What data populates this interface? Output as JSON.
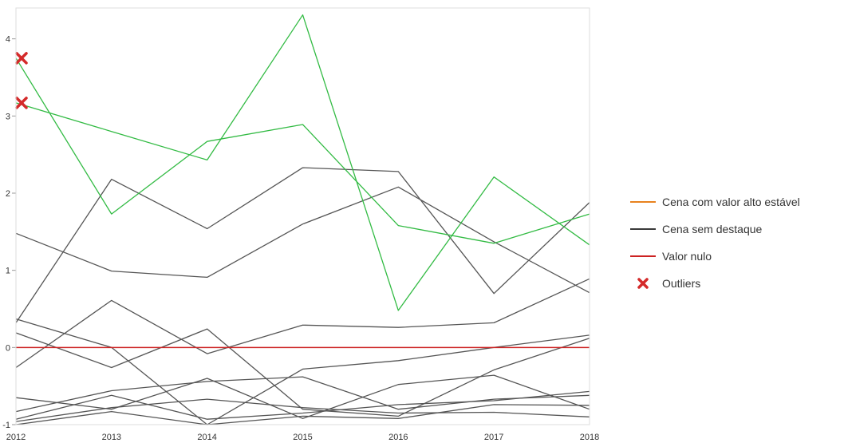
{
  "chart_data": {
    "type": "line",
    "x": [
      2012,
      2013,
      2014,
      2015,
      2016,
      2017,
      2018
    ],
    "xlim": [
      2012,
      2018
    ],
    "ylim": [
      -1,
      4.4
    ],
    "yticks": [
      -1,
      0,
      1,
      2,
      3,
      4
    ],
    "grid": false,
    "legend_position": "right",
    "reference_line": {
      "y": 0,
      "color": "#cc2222"
    },
    "legend": [
      {
        "label": "Cena com valor alto estável",
        "color": "#e8821e",
        "kind": "line"
      },
      {
        "label": "Cena sem destaque",
        "color": "#3a3a3a",
        "kind": "line"
      },
      {
        "label": "Valor nulo",
        "color": "#cc2222",
        "kind": "line"
      },
      {
        "label": "Outliers",
        "color": "#d42a2a",
        "kind": "marker"
      }
    ],
    "highlight_color": "#33bb44",
    "default_color": "#555555",
    "series": [
      {
        "values": [
          3.75,
          1.73,
          2.67,
          2.89,
          1.58,
          1.35,
          1.73
        ],
        "highlight": true
      },
      {
        "values": [
          3.17,
          2.8,
          2.43,
          4.31,
          0.48,
          2.21,
          1.33
        ],
        "highlight": true
      },
      {
        "values": [
          1.48,
          0.99,
          0.91,
          1.6,
          2.08,
          1.37,
          0.71
        ]
      },
      {
        "values": [
          0.32,
          2.18,
          1.54,
          2.33,
          2.28,
          0.7,
          1.88
        ]
      },
      {
        "values": [
          -0.26,
          0.61,
          -0.08,
          0.29,
          0.26,
          0.32,
          0.89
        ]
      },
      {
        "values": [
          0.37,
          0.0,
          -1.0,
          -0.28,
          -0.17,
          0.0,
          0.16
        ]
      },
      {
        "values": [
          0.19,
          -0.26,
          0.24,
          -0.8,
          -0.89,
          -0.29,
          0.12
        ]
      },
      {
        "values": [
          -0.65,
          -0.8,
          -0.4,
          -0.92,
          -0.48,
          -0.36,
          -0.8
        ]
      },
      {
        "values": [
          -0.83,
          -0.56,
          -0.44,
          -0.38,
          -0.8,
          -0.67,
          -0.62
        ]
      },
      {
        "values": [
          -0.93,
          -0.62,
          -0.93,
          -0.85,
          -0.74,
          -0.69,
          -0.57
        ]
      },
      {
        "values": [
          -0.96,
          -0.78,
          -0.67,
          -0.78,
          -0.85,
          -0.84,
          -0.9
        ]
      },
      {
        "values": [
          -1.0,
          -0.83,
          -1.0,
          -0.89,
          -0.92,
          -0.74,
          -0.75
        ]
      }
    ],
    "outliers": [
      {
        "x": 2012,
        "y": 3.75
      },
      {
        "x": 2012,
        "y": 3.17
      }
    ]
  }
}
